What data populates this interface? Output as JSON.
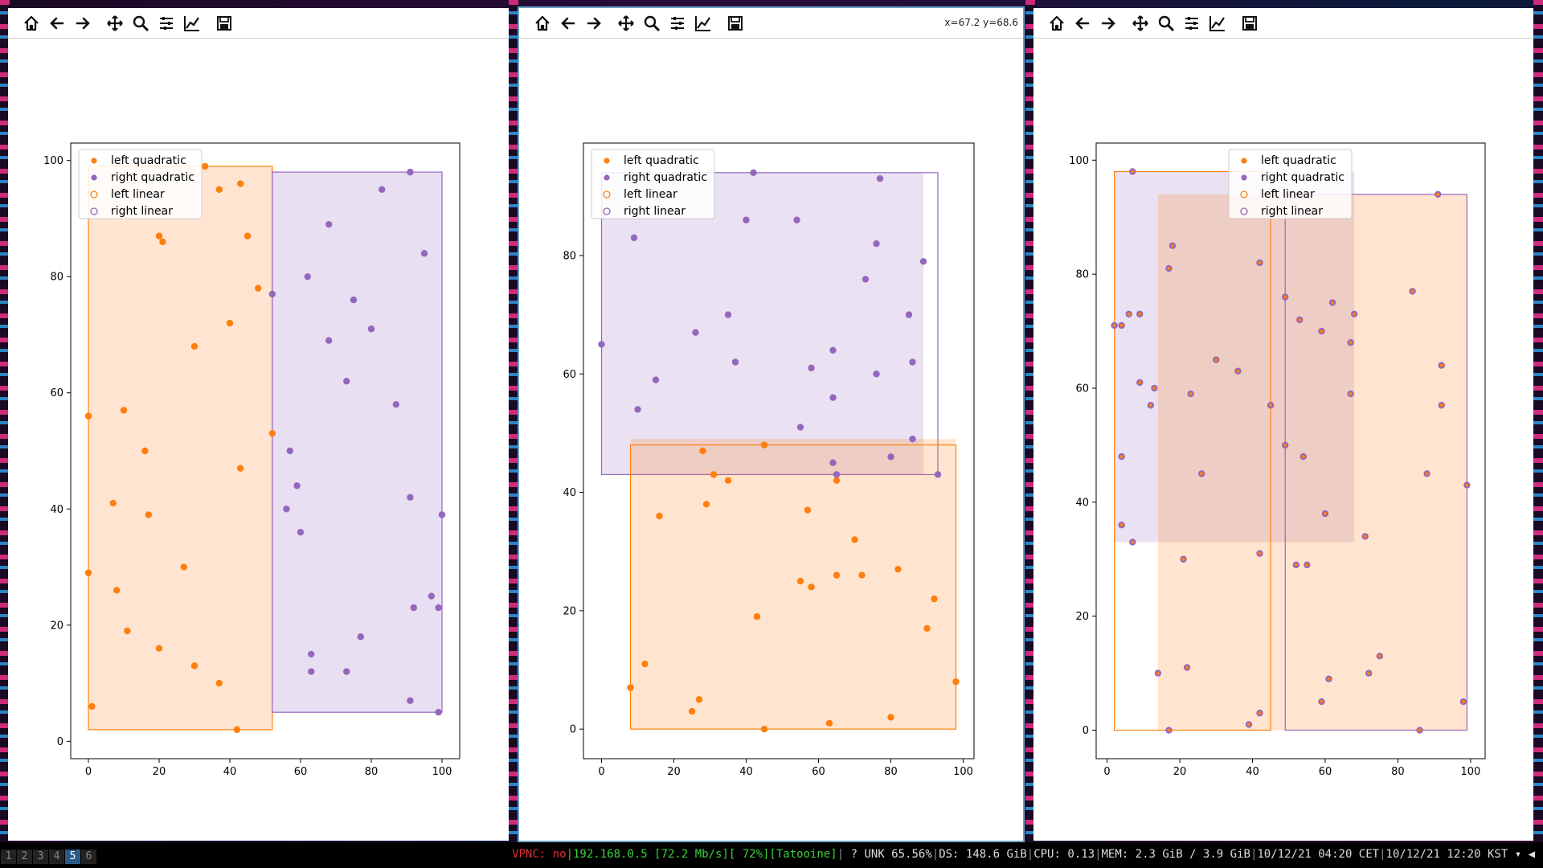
{
  "toolbar_icons": [
    "home-icon",
    "back-icon",
    "forward-icon",
    "pan-icon",
    "zoom-icon",
    "configure-icon",
    "edit-axis-icon",
    "save-icon"
  ],
  "windows": [
    {
      "coords": ""
    },
    {
      "coords": "x=67.2 y=68.6"
    },
    {
      "coords": ""
    }
  ],
  "legend_labels": [
    "left quadratic",
    "right quadratic",
    "left linear",
    "right linear"
  ],
  "colors": {
    "left": "#ff7f0e",
    "right": "#9467bd",
    "left_fill": "#ffe5d1",
    "right_fill": "#e8dff2"
  },
  "chart_data": [
    {
      "type": "scatter",
      "xlim": [
        -5,
        105
      ],
      "ylim": [
        -3,
        103
      ],
      "xticks": [
        0,
        20,
        40,
        60,
        80,
        100
      ],
      "yticks": [
        0,
        20,
        40,
        60,
        80,
        100
      ],
      "legend_position": "upper-left",
      "rects": [
        {
          "series": "left",
          "x0": 0,
          "x1": 52,
          "y0": 2,
          "y1": 99,
          "style": "filled-outline"
        },
        {
          "series": "right",
          "x0": 52,
          "x1": 100,
          "y0": 5,
          "y1": 98,
          "style": "filled-outline"
        }
      ],
      "series": [
        {
          "name": "left quadratic",
          "color": "left",
          "x": [
            0,
            0,
            1,
            7,
            8,
            10,
            11,
            16,
            17,
            20,
            20,
            21,
            27,
            30,
            30,
            33,
            37,
            37,
            40,
            42,
            43,
            43,
            45,
            48,
            52
          ],
          "y": [
            56,
            29,
            6,
            41,
            26,
            57,
            19,
            50,
            39,
            87,
            16,
            86,
            30,
            68,
            13,
            99,
            95,
            10,
            72,
            2,
            96,
            47,
            87,
            78,
            53
          ]
        },
        {
          "name": "right quadratic",
          "color": "right",
          "x": [
            52,
            56,
            57,
            59,
            60,
            62,
            63,
            63,
            68,
            68,
            73,
            73,
            75,
            77,
            80,
            83,
            87,
            91,
            91,
            91,
            92,
            95,
            97,
            99,
            99,
            100
          ],
          "y": [
            77,
            40,
            50,
            44,
            36,
            80,
            15,
            12,
            89,
            69,
            62,
            12,
            76,
            18,
            71,
            95,
            58,
            98,
            42,
            7,
            23,
            84,
            25,
            23,
            5,
            39
          ]
        }
      ]
    },
    {
      "type": "scatter",
      "xlim": [
        -5,
        103
      ],
      "ylim": [
        -5,
        99
      ],
      "xticks": [
        0,
        20,
        40,
        60,
        80,
        100
      ],
      "yticks": [
        0,
        20,
        40,
        60,
        80
      ],
      "legend_position": "upper-left",
      "rects": [
        {
          "series": "right",
          "x0": 0,
          "x1": 89,
          "y0": 43,
          "y1": 94,
          "style": "filled"
        },
        {
          "series": "right",
          "x0": 0,
          "x1": 93,
          "y0": 43,
          "y1": 94,
          "style": "outline"
        },
        {
          "series": "left",
          "x0": 8,
          "x1": 98,
          "y0": 0,
          "y1": 49,
          "style": "filled"
        },
        {
          "series": "left",
          "x0": 8,
          "x1": 98,
          "y0": 0,
          "y1": 48,
          "style": "outline"
        }
      ],
      "series": [
        {
          "name": "left quadratic",
          "color": "left",
          "x": [
            8,
            12,
            16,
            25,
            27,
            28,
            29,
            31,
            35,
            43,
            45,
            45,
            55,
            57,
            58,
            63,
            65,
            65,
            70,
            72,
            80,
            82,
            90,
            92,
            98
          ],
          "y": [
            7,
            11,
            36,
            3,
            5,
            47,
            38,
            43,
            42,
            19,
            48,
            0,
            25,
            37,
            24,
            1,
            42,
            26,
            32,
            26,
            2,
            27,
            17,
            22,
            8
          ]
        },
        {
          "name": "right quadratic",
          "color": "right",
          "x": [
            0,
            9,
            10,
            15,
            26,
            35,
            37,
            40,
            42,
            54,
            55,
            58,
            64,
            64,
            64,
            65,
            73,
            76,
            76,
            77,
            80,
            85,
            86,
            86,
            89,
            93
          ],
          "y": [
            65,
            83,
            54,
            59,
            67,
            70,
            62,
            86,
            94,
            86,
            51,
            61,
            64,
            56,
            45,
            43,
            76,
            82,
            60,
            93,
            46,
            70,
            62,
            49,
            79,
            43
          ]
        }
      ]
    },
    {
      "type": "scatter",
      "xlim": [
        -3,
        104
      ],
      "ylim": [
        -5,
        103
      ],
      "xticks": [
        0,
        20,
        40,
        60,
        80,
        100
      ],
      "yticks": [
        0,
        20,
        40,
        60,
        80,
        100
      ],
      "legend_position": "upper-center",
      "rects": [
        {
          "series": "right",
          "x0": 2,
          "x1": 68,
          "y0": 33,
          "y1": 98,
          "style": "filled"
        },
        {
          "series": "left",
          "x0": 14,
          "x1": 99,
          "y0": 0,
          "y1": 94,
          "style": "filled"
        },
        {
          "series": "left",
          "x0": 2,
          "x1": 45,
          "y0": 0,
          "y1": 98,
          "style": "outline"
        },
        {
          "series": "right",
          "x0": 49,
          "x1": 99,
          "y0": 0,
          "y1": 94,
          "style": "outline"
        }
      ],
      "series": [
        {
          "name": "right quadratic",
          "color": "right",
          "x": [
            2,
            4,
            4,
            4,
            6,
            7,
            7,
            9,
            9,
            12,
            13,
            14,
            17,
            17,
            18,
            21,
            22,
            23,
            26,
            30,
            36,
            39,
            42,
            42,
            42,
            45,
            49,
            49,
            52,
            53,
            54,
            55,
            59,
            59,
            60,
            61,
            62,
            67,
            67,
            68,
            71,
            72,
            75,
            84,
            86,
            88,
            91,
            92,
            92,
            98,
            99
          ],
          "y": [
            71,
            71,
            48,
            36,
            73,
            98,
            33,
            73,
            61,
            57,
            60,
            10,
            81,
            0,
            85,
            30,
            11,
            59,
            45,
            65,
            63,
            1,
            82,
            31,
            3,
            57,
            76,
            50,
            29,
            72,
            48,
            29,
            70,
            5,
            38,
            9,
            75,
            59,
            68,
            73,
            34,
            10,
            13,
            77,
            0,
            45,
            94,
            64,
            57,
            5,
            43
          ]
        },
        {
          "name": "left quadratic",
          "color": "left",
          "marker": "center",
          "x": [
            2,
            4,
            4,
            4,
            6,
            7,
            7,
            9,
            9,
            12,
            13,
            14,
            17,
            17,
            18,
            21,
            22,
            23,
            26,
            30,
            36,
            39,
            42,
            42,
            42,
            45,
            49,
            49,
            52,
            53,
            54,
            55,
            59,
            59,
            60,
            61,
            62,
            67,
            67,
            68,
            71,
            72,
            75,
            84,
            86,
            88,
            91,
            92,
            92,
            98,
            99
          ],
          "y": [
            71,
            71,
            48,
            36,
            73,
            98,
            33,
            73,
            61,
            57,
            60,
            10,
            81,
            0,
            85,
            30,
            11,
            59,
            45,
            65,
            63,
            1,
            82,
            31,
            3,
            57,
            76,
            50,
            29,
            72,
            48,
            29,
            70,
            5,
            38,
            9,
            75,
            59,
            68,
            73,
            34,
            10,
            13,
            77,
            0,
            45,
            94,
            64,
            57,
            5,
            43
          ]
        }
      ]
    }
  ],
  "taskbar": {
    "workspaces": [
      "1",
      "2",
      "3",
      "4",
      "5",
      "6"
    ],
    "active_workspace": "5",
    "vpnc_label": "VPNC: no",
    "net": "192.168.0.5 [72.2 Mb/s][ 72%][Tatooine]",
    "unk": " ? UNK 65.56%",
    "ds": "DS: 148.6 GiB",
    "cpu": "CPU: 0.13",
    "mem": "MEM: 2.3 GiB / 3.9 GiB",
    "time1": "10/12/21 04:20 CET",
    "time2": "10/12/21 12:20 KST"
  }
}
